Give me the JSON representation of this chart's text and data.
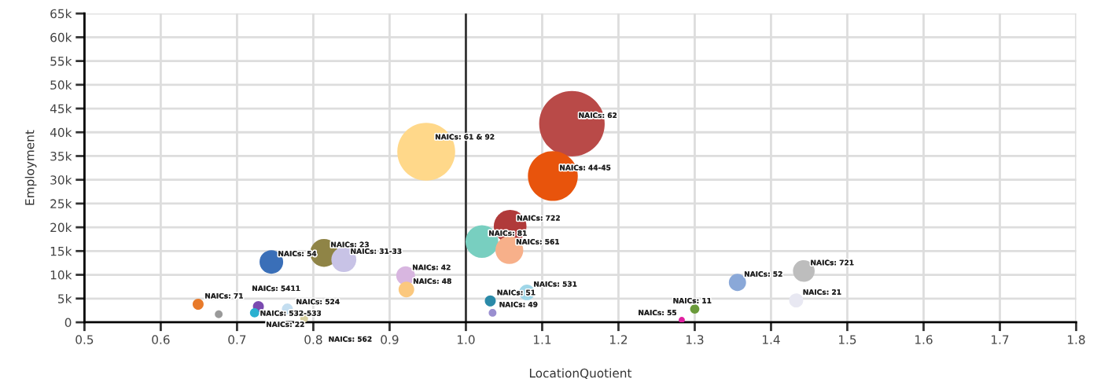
{
  "chart_data": {
    "type": "bubble",
    "xlabel": "LocationQuotient",
    "ylabel": "Employment",
    "xlim": [
      0.5,
      1.8
    ],
    "ylim": [
      0,
      65000
    ],
    "xticks": [
      {
        "value": 0.5,
        "label": "0.5"
      },
      {
        "value": 0.6,
        "label": "0.6"
      },
      {
        "value": 0.7,
        "label": "0.7"
      },
      {
        "value": 0.8,
        "label": "0.8"
      },
      {
        "value": 0.9,
        "label": "0.9"
      },
      {
        "value": 1.0,
        "label": "1.0"
      },
      {
        "value": 1.1,
        "label": "1.1"
      },
      {
        "value": 1.2,
        "label": "1.2"
      },
      {
        "value": 1.3,
        "label": "1.3"
      },
      {
        "value": 1.4,
        "label": "1.4"
      },
      {
        "value": 1.5,
        "label": "1.5"
      },
      {
        "value": 1.6,
        "label": "1.6"
      },
      {
        "value": 1.7,
        "label": "1.7"
      },
      {
        "value": 1.8,
        "label": "1.8"
      }
    ],
    "yticks": [
      0,
      {
        "value": 5000,
        "label": "5k"
      },
      {
        "value": 10000,
        "label": "10k"
      },
      {
        "value": 15000,
        "label": "15k"
      },
      {
        "value": 20000,
        "label": "20k"
      },
      {
        "value": 25000,
        "label": "25k"
      },
      {
        "value": 30000,
        "label": "30k"
      },
      {
        "value": 35000,
        "label": "35k"
      },
      {
        "value": 40000,
        "label": "40k"
      },
      {
        "value": 45000,
        "label": "45k"
      },
      {
        "value": 50000,
        "label": "50k"
      },
      {
        "value": 55000,
        "label": "55k"
      },
      {
        "value": 60000,
        "label": "60k"
      },
      {
        "value": 65000,
        "label": "65k"
      }
    ],
    "grid": true,
    "x": [
      1.139,
      0.948,
      1.114,
      1.058,
      1.021,
      1.057,
      0.921,
      0.922,
      1.08,
      1.032,
      1.035,
      0.814,
      0.84,
      0.745,
      0.649,
      0.676,
      0.728,
      0.723,
      0.766,
      0.788,
      1.283,
      1.3,
      1.356,
      1.443,
      1.433
    ],
    "values": [
      41800,
      35900,
      30800,
      20200,
      17000,
      15200,
      9800,
      6900,
      6300,
      4500,
      2000,
      14600,
      13200,
      12700,
      3800,
      1700,
      3300,
      2000,
      2800,
      800,
      500,
      2800,
      8400,
      10800,
      4600
    ],
    "sizes": [
      1,
      0.78,
      0.58,
      0.25,
      0.25,
      0.18,
      0.082,
      0.057,
      0.057,
      0.028,
      0.014,
      0.18,
      0.145,
      0.13,
      0.028,
      0.014,
      0.028,
      0.02,
      0.028,
      0.014,
      0.009,
      0.02,
      0.069,
      0.11,
      0.046
    ],
    "colors": [
      "#b94a48",
      "#ffd88a",
      "#e8540c",
      "#b03a3a",
      "#78cfc0",
      "#f7b08a",
      "#d8b6e0",
      "#fbc87e",
      "#9fd6e8",
      "#2a8aa8",
      "#9a8fd0",
      "#8f8446",
      "#c8c3e6",
      "#3a6fb8",
      "#e87a2a",
      "#9a9a9a",
      "#7a4ab0",
      "#2ab0d0",
      "#c4def0",
      "#d8d0a0",
      "#e020a0",
      "#6a9a3a",
      "#8aa8d8",
      "#bdbdbd",
      "#e8e8f2"
    ],
    "ref_lines": [
      {
        "axis": "x",
        "value": 1.0,
        "color": "#333333"
      }
    ],
    "annotations": [
      {
        "text": "NAICs: 62",
        "x": 1.139,
        "y": 41800
      },
      {
        "text": "NAICs: 61 & 92",
        "x": 0.948,
        "y": 35900
      },
      {
        "text": "NAICs: 44-45",
        "x": 1.114,
        "y": 30800
      },
      {
        "text": "NAICs: 722",
        "x": 1.058,
        "y": 20200
      },
      {
        "text": "NAICs: 81",
        "x": 1.021,
        "y": 17000
      },
      {
        "text": "NAICs: 561",
        "x": 1.057,
        "y": 15200
      },
      {
        "text": "NAICs: 42",
        "x": 0.921,
        "y": 9800
      },
      {
        "text": "NAICs: 48",
        "x": 0.922,
        "y": 6900
      },
      {
        "text": "NAICs: 531",
        "x": 1.08,
        "y": 6300
      },
      {
        "text": "NAICs: 51",
        "x": 1.032,
        "y": 4500
      },
      {
        "text": "NAICs: 49",
        "x": 1.035,
        "y": 2000
      },
      {
        "text": "NAICs: 23",
        "x": 0.814,
        "y": 14600
      },
      {
        "text": "NAICs: 31-33",
        "x": 0.84,
        "y": 13200
      },
      {
        "text": "NAICs: 54",
        "x": 0.745,
        "y": 12700
      },
      {
        "text": "NAICs: 71",
        "x": 0.649,
        "y": 3800
      },
      {
        "text": "NAICs: 5411",
        "x": 0.728,
        "y": 3300
      },
      {
        "text": "NAICs: 532-533",
        "x": 0.723,
        "y": 2000
      },
      {
        "text": "NAICs: 524",
        "x": 0.766,
        "y": 2800
      },
      {
        "text": "NAICs: 22",
        "x": 0.788,
        "y": 800
      },
      {
        "text": "NAICs: 55",
        "x": 1.283,
        "y": 500
      },
      {
        "text": "NAICs: 11",
        "x": 1.3,
        "y": 2800
      },
      {
        "text": "NAICs: 52",
        "x": 1.356,
        "y": 8400
      },
      {
        "text": "NAICs: 721",
        "x": 1.443,
        "y": 10800
      },
      {
        "text": "NAICs: 21",
        "x": 1.433,
        "y": 4600
      },
      "NAICs: 562"
    ]
  }
}
